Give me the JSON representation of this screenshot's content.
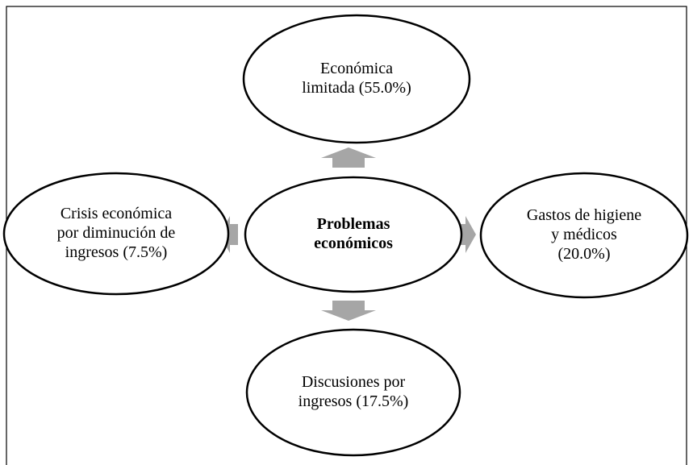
{
  "nodes": [
    {
      "label": [
        "Problemas",
        "económicos"
      ]
    },
    {
      "label": [
        "Económica",
        "limitada (55.0%)"
      ]
    },
    {
      "label": [
        "Gastos de higiene",
        "y médicos",
        "(20.0%)"
      ]
    },
    {
      "label": [
        "Discusiones por",
        "ingresos (17.5%)"
      ]
    },
    {
      "label": [
        "Crisis económica",
        "por diminución de",
        "ingresos (7.5%)"
      ]
    }
  ]
}
